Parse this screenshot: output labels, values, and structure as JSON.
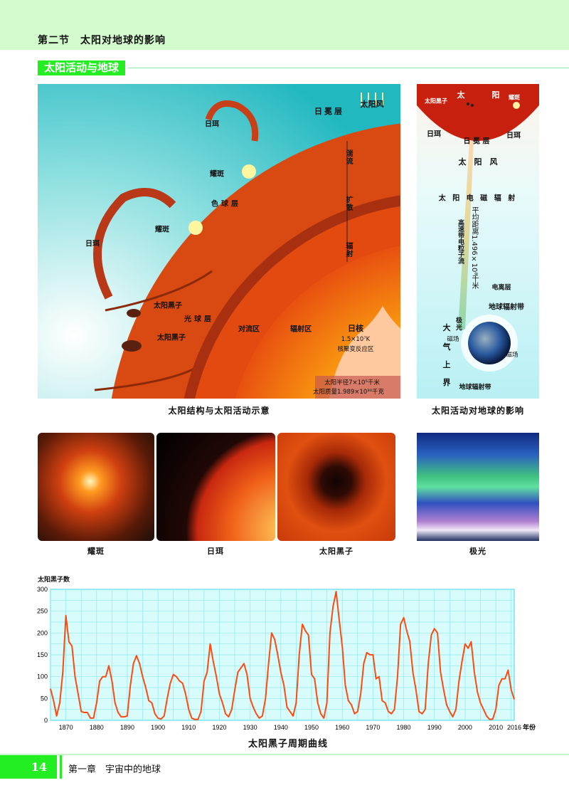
{
  "header": {
    "title": "第二节　太阳对地球的影响"
  },
  "section": {
    "tag": "太阳活动与地球"
  },
  "colors": {
    "accent_green": "#22ee22",
    "header_bg": "#d3fccd",
    "curve": "#ff4a10",
    "plot_bg": "#d8fbfb"
  },
  "figure_structure": {
    "caption": "太阳结构与太阳活动示意",
    "labels": {
      "prominence_top": "日珥",
      "flare_1": "耀斑",
      "chromosphere": "色球层",
      "flare_2": "耀斑",
      "prominence_left": "日珥",
      "sunspot_1": "太阳黑子",
      "photosphere": "光球层",
      "sunspot_2": "太阳黑子",
      "convection_zone": "对流区",
      "corona": "日冕层",
      "solar_wind": "太阳风",
      "turbulence": "湍流",
      "diffusion": "扩散",
      "radiation": "辐射",
      "radiative_zone": "辐射区",
      "core": "日核",
      "core_temp": "1.5×10⁷K",
      "core_reaction": "核聚变反应区",
      "sun_radius": "太阳半径7×10⁵千米",
      "sun_mass": "太阳质量1.989×10³⁰千克"
    }
  },
  "figure_earth": {
    "caption": "太阳活动对地球的影响",
    "labels": {
      "sunspot": "太阳黑子",
      "sun_1": "太",
      "sun_2": "阳",
      "flare": "耀斑",
      "prominence_l": "日珥",
      "corona": "日 冕 层",
      "prominence_r": "日珥",
      "solar_wind": "太　阳　风",
      "em_radiation": "太 阳 电 磁 辐 射",
      "particle_stream": "高速带电粒子流",
      "distance": "平均距离1.496×10⁸千米",
      "ionosphere": "电离层",
      "radiation_belt_top": "地球辐射带",
      "aurora": "极光",
      "atm_1": "大",
      "magnetic_l": "磁场",
      "atm_2": "气",
      "magnetic_r": "磁场",
      "atm_3": "上",
      "atm_4": "界",
      "radiation_belt_bottom": "地球辐射带"
    }
  },
  "photos": [
    {
      "caption": "耀斑",
      "icon": "solar-flare-photo"
    },
    {
      "caption": "日珥",
      "icon": "prominence-photo"
    },
    {
      "caption": "太阳黑子",
      "icon": "sunspot-photo"
    },
    {
      "caption": "极光",
      "icon": "aurora-photo"
    }
  ],
  "chart_data": {
    "type": "line",
    "title": "太阳黑子周期曲线",
    "ylabel": "太阳黑子数",
    "xlabel": "年份",
    "xlim": [
      1865,
      2016
    ],
    "ylim": [
      0,
      300
    ],
    "yticks": [
      0,
      50,
      100,
      150,
      200,
      250,
      300
    ],
    "xticks": [
      1870,
      1880,
      1890,
      1900,
      1910,
      1920,
      1930,
      1940,
      1950,
      1960,
      1970,
      1980,
      1990,
      2000,
      2010,
      2016
    ],
    "grid": true,
    "x": [
      1865,
      1866,
      1867,
      1868,
      1869,
      1870,
      1871,
      1872,
      1873,
      1874,
      1875,
      1876,
      1877,
      1878,
      1879,
      1880,
      1881,
      1882,
      1883,
      1884,
      1885,
      1886,
      1887,
      1888,
      1889,
      1890,
      1891,
      1892,
      1893,
      1894,
      1895,
      1896,
      1897,
      1898,
      1899,
      1900,
      1901,
      1902,
      1903,
      1904,
      1905,
      1906,
      1907,
      1908,
      1909,
      1910,
      1911,
      1912,
      1913,
      1914,
      1915,
      1916,
      1917,
      1918,
      1919,
      1920,
      1921,
      1922,
      1923,
      1924,
      1925,
      1926,
      1927,
      1928,
      1929,
      1930,
      1931,
      1932,
      1933,
      1934,
      1935,
      1936,
      1937,
      1938,
      1939,
      1940,
      1941,
      1942,
      1943,
      1944,
      1945,
      1946,
      1947,
      1948,
      1949,
      1950,
      1951,
      1952,
      1953,
      1954,
      1955,
      1956,
      1957,
      1958,
      1959,
      1960,
      1961,
      1962,
      1963,
      1964,
      1965,
      1966,
      1967,
      1968,
      1969,
      1970,
      1971,
      1972,
      1973,
      1974,
      1975,
      1976,
      1977,
      1978,
      1979,
      1980,
      1981,
      1982,
      1983,
      1984,
      1985,
      1986,
      1987,
      1988,
      1989,
      1990,
      1991,
      1992,
      1993,
      1994,
      1995,
      1996,
      1997,
      1998,
      1999,
      2000,
      2001,
      2002,
      2003,
      2004,
      2005,
      2006,
      2007,
      2008,
      2009,
      2010,
      2011,
      2012,
      2013,
      2014,
      2015,
      2016
    ],
    "values": [
      72,
      45,
      10,
      40,
      110,
      240,
      180,
      170,
      100,
      60,
      20,
      18,
      18,
      5,
      5,
      40,
      90,
      100,
      100,
      125,
      90,
      40,
      18,
      8,
      8,
      10,
      80,
      130,
      148,
      130,
      100,
      75,
      45,
      40,
      15,
      5,
      3,
      10,
      50,
      85,
      105,
      100,
      90,
      85,
      60,
      25,
      5,
      2,
      2,
      20,
      90,
      110,
      175,
      135,
      100,
      60,
      40,
      15,
      8,
      25,
      70,
      110,
      120,
      130,
      105,
      50,
      30,
      15,
      5,
      10,
      50,
      130,
      200,
      185,
      150,
      110,
      80,
      30,
      20,
      10,
      40,
      150,
      220,
      205,
      195,
      105,
      95,
      40,
      15,
      5,
      40,
      200,
      260,
      295,
      230,
      170,
      80,
      45,
      35,
      15,
      20,
      60,
      130,
      155,
      150,
      150,
      95,
      100,
      45,
      40,
      20,
      15,
      25,
      100,
      220,
      235,
      205,
      180,
      110,
      70,
      20,
      15,
      25,
      130,
      195,
      210,
      200,
      110,
      70,
      35,
      20,
      8,
      25,
      90,
      135,
      175,
      165,
      180,
      110,
      65,
      40,
      25,
      10,
      2,
      3,
      25,
      80,
      95,
      95,
      115,
      70,
      48
    ]
  },
  "footer": {
    "page": "14",
    "chapter": "第一章　宇宙中的地球"
  }
}
